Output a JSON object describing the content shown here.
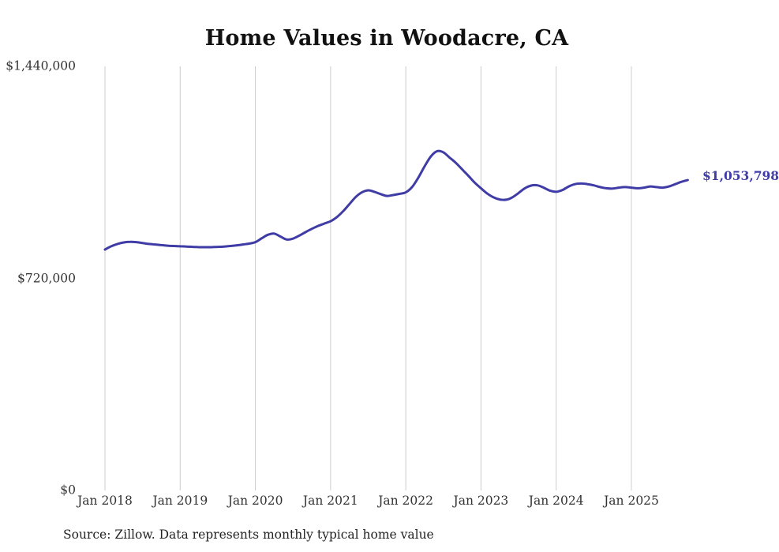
{
  "page": {
    "background_color": "#ffffff"
  },
  "chart_data": {
    "type": "line",
    "title": "Home Values in Woodacre, CA",
    "source_note": "Source: Zillow. Data represents monthly typical home value",
    "end_label": "$1,053,798",
    "line_color": "#3f3ca6",
    "grid_color": "#cccccc",
    "text_color": "#333333",
    "grid": "vertical-only",
    "legend": "none",
    "ylim": [
      0,
      1440000
    ],
    "y_ticks": [
      {
        "value": 1440000,
        "label": "$1,440,000"
      },
      {
        "value": 720000,
        "label": "$720,000"
      },
      {
        "value": 0,
        "label": "$0"
      }
    ],
    "x_ticks": [
      "Jan 2018",
      "Jan 2019",
      "Jan 2020",
      "Jan 2021",
      "Jan 2022",
      "Jan 2023",
      "Jan 2024",
      "Jan 2025"
    ],
    "x_start": "Jan 2018",
    "x_end": "Oct 2025",
    "x_interval": "monthly",
    "series": [
      {
        "name": "Typical home value",
        "values": [
          818000,
          829000,
          837000,
          842000,
          844000,
          843000,
          840000,
          837000,
          835000,
          833000,
          831000,
          830000,
          829000,
          828000,
          827000,
          826000,
          826000,
          826000,
          827000,
          828000,
          830000,
          832000,
          835000,
          838000,
          843000,
          856000,
          868000,
          872000,
          862000,
          852000,
          855000,
          865000,
          877000,
          888000,
          898000,
          906000,
          914000,
          928000,
          948000,
          972000,
          996000,
          1012000,
          1019000,
          1014000,
          1006000,
          1000000,
          1003000,
          1007000,
          1012000,
          1030000,
          1062000,
          1100000,
          1134000,
          1152000,
          1148000,
          1130000,
          1112000,
          1090000,
          1068000,
          1045000,
          1026000,
          1008000,
          995000,
          988000,
          987000,
          995000,
          1010000,
          1026000,
          1035000,
          1036000,
          1028000,
          1018000,
          1014000,
          1020000,
          1032000,
          1040000,
          1042000,
          1040000,
          1036000,
          1030000,
          1026000,
          1025000,
          1028000,
          1030000,
          1028000,
          1026000,
          1028000,
          1032000,
          1030000,
          1028000,
          1032000,
          1040000,
          1048000,
          1053798
        ]
      }
    ]
  }
}
